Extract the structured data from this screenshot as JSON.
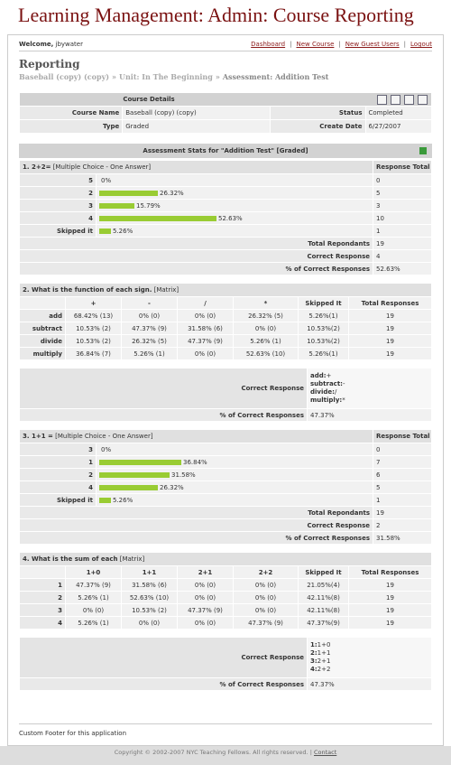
{
  "header": {
    "title": "Learning Management: Admin: Course Reporting",
    "welcome_label": "Welcome,",
    "user": "jbywater",
    "nav": [
      "Dashboard",
      "New Course",
      "New Guest Users",
      "Logout"
    ],
    "nav_separator": "|"
  },
  "page": {
    "heading": "Reporting",
    "breadcrumb": [
      "Baseball (copy) (copy)",
      "Unit: In The Beginning",
      "Assessment: Addition Test"
    ],
    "breadcrumb_separator": "»"
  },
  "course_details": {
    "title": "Course Details",
    "fields": [
      {
        "label": "Course Name",
        "value": "Baseball (copy) (copy)"
      },
      {
        "label": "Status",
        "value": "Completed"
      },
      {
        "label": "Type",
        "value": "Graded"
      },
      {
        "label": "Create Date",
        "value": "6/27/2007"
      }
    ]
  },
  "assessment": {
    "title": "Assessment Stats for \"Addition Test\" [Graded]",
    "questions": [
      {
        "type": "choice",
        "title": "1. 2+2=",
        "kind": "[Multiple Choice - One Answer]",
        "total_header": "Response Total",
        "options": [
          {
            "label": "5",
            "percent": 0,
            "percent_label": "0%",
            "count": 0
          },
          {
            "label": "2",
            "percent": 26.32,
            "percent_label": "26.32%",
            "count": 5
          },
          {
            "label": "3",
            "percent": 15.79,
            "percent_label": "15.79%",
            "count": 3
          },
          {
            "label": "4",
            "percent": 52.63,
            "percent_label": "52.63%",
            "count": 10
          },
          {
            "label": "Skipped it",
            "percent": 5.26,
            "percent_label": "5.26%",
            "count": 1
          }
        ],
        "summary": [
          {
            "label": "Total Repondants",
            "value": "19"
          },
          {
            "label": "Correct Response",
            "value": "4"
          },
          {
            "label": "% of Correct Responses",
            "value": "52.63%"
          }
        ]
      },
      {
        "type": "matrix",
        "title": "2. What is the function of each sign.",
        "kind": "[Matrix]",
        "columns": [
          "+",
          "-",
          "/",
          "*",
          "Skipped It",
          "Total Responses"
        ],
        "rows": [
          {
            "label": "add",
            "cells": [
              "68.42% (13)",
              "0% (0)",
              "0% (0)",
              "26.32% (5)",
              "5.26%(1)",
              "19"
            ]
          },
          {
            "label": "subtract",
            "cells": [
              "10.53% (2)",
              "47.37% (9)",
              "31.58% (6)",
              "0% (0)",
              "10.53%(2)",
              "19"
            ]
          },
          {
            "label": "divide",
            "cells": [
              "10.53% (2)",
              "26.32% (5)",
              "47.37% (9)",
              "5.26% (1)",
              "10.53%(2)",
              "19"
            ]
          },
          {
            "label": "multiply",
            "cells": [
              "36.84% (7)",
              "5.26% (1)",
              "0% (0)",
              "52.63% (10)",
              "5.26%(1)",
              "19"
            ]
          }
        ],
        "correct_label": "Correct Response",
        "correct": [
          {
            "key": "add:",
            "answer": "+"
          },
          {
            "key": "subtract:",
            "answer": "-"
          },
          {
            "key": "divide:",
            "answer": "/"
          },
          {
            "key": "multiply:",
            "answer": "*"
          }
        ],
        "percent_label": "% of Correct Responses",
        "percent": "47.37%"
      },
      {
        "type": "choice",
        "title": "3. 1+1 =",
        "kind": "[Multiple Choice - One Answer]",
        "total_header": "Response Total",
        "options": [
          {
            "label": "3",
            "percent": 0,
            "percent_label": "0%",
            "count": 0
          },
          {
            "label": "1",
            "percent": 36.84,
            "percent_label": "36.84%",
            "count": 7
          },
          {
            "label": "2",
            "percent": 31.58,
            "percent_label": "31.58%",
            "count": 6
          },
          {
            "label": "4",
            "percent": 26.32,
            "percent_label": "26.32%",
            "count": 5
          },
          {
            "label": "Skipped it",
            "percent": 5.26,
            "percent_label": "5.26%",
            "count": 1
          }
        ],
        "summary": [
          {
            "label": "Total Repondants",
            "value": "19"
          },
          {
            "label": "Correct Response",
            "value": "2"
          },
          {
            "label": "% of Correct Responses",
            "value": "31.58%"
          }
        ]
      },
      {
        "type": "matrix",
        "title": "4. What is the sum of each",
        "kind": "[Matrix]",
        "columns": [
          "1+0",
          "1+1",
          "2+1",
          "2+2",
          "Skipped It",
          "Total Responses"
        ],
        "rows": [
          {
            "label": "1",
            "cells": [
              "47.37% (9)",
              "31.58% (6)",
              "0% (0)",
              "0% (0)",
              "21.05%(4)",
              "19"
            ]
          },
          {
            "label": "2",
            "cells": [
              "5.26% (1)",
              "52.63% (10)",
              "0% (0)",
              "0% (0)",
              "42.11%(8)",
              "19"
            ]
          },
          {
            "label": "3",
            "cells": [
              "0% (0)",
              "10.53% (2)",
              "47.37% (9)",
              "0% (0)",
              "42.11%(8)",
              "19"
            ]
          },
          {
            "label": "4",
            "cells": [
              "5.26% (1)",
              "0% (0)",
              "0% (0)",
              "47.37% (9)",
              "47.37%(9)",
              "19"
            ]
          }
        ],
        "correct_label": "Correct Response",
        "correct": [
          {
            "key": "1:",
            "answer": "1+0"
          },
          {
            "key": "2:",
            "answer": "1+1"
          },
          {
            "key": "3:",
            "answer": "2+1"
          },
          {
            "key": "4:",
            "answer": "2+2"
          }
        ],
        "percent_label": "% of Correct Responses",
        "percent": "47.37%"
      }
    ]
  },
  "footer": {
    "custom": "Custom Footer for this application",
    "copyright": "Copyright © 2002-2007 NYC Teaching Fellows. All rights reserved.",
    "separator": "|",
    "contact": "Contact"
  }
}
